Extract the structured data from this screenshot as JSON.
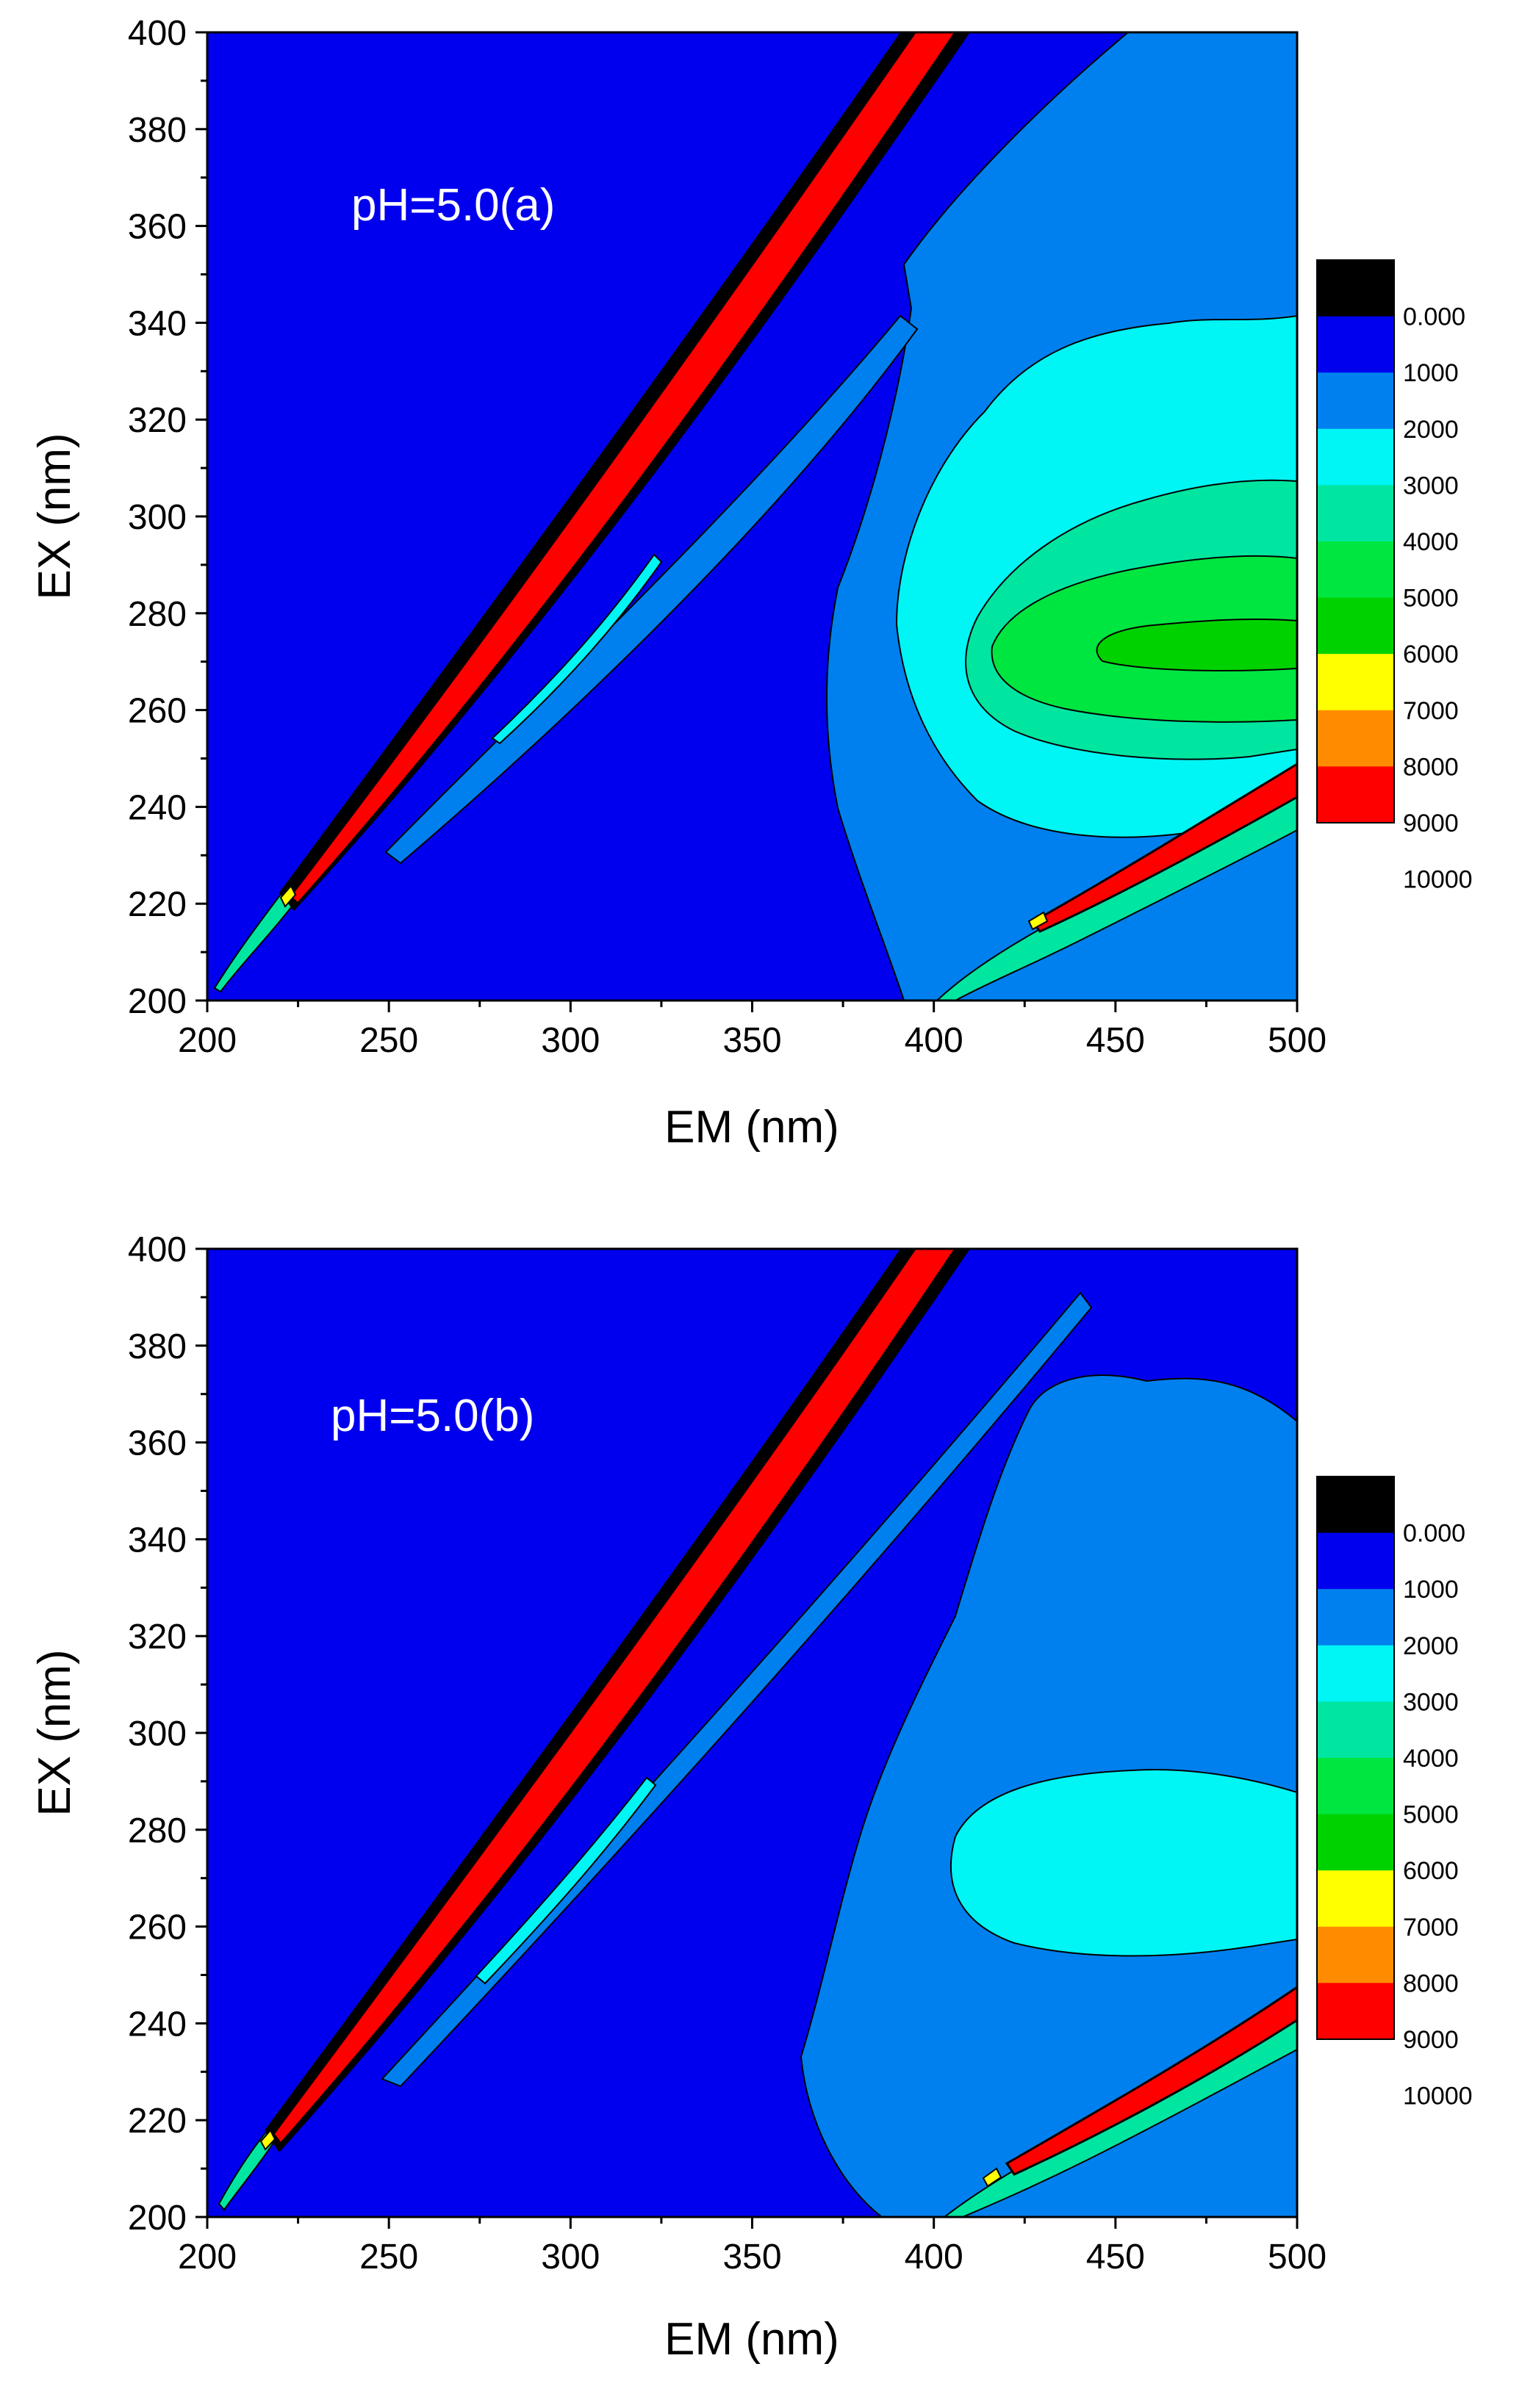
{
  "chart_data": [
    {
      "type": "contour",
      "title": "",
      "annotation": "pH=5.0(a)",
      "xlabel": "EM (nm)",
      "ylabel": "EX (nm)",
      "xlim": [
        200,
        500
      ],
      "ylim": [
        200,
        400
      ],
      "xticks": [
        "200",
        "250",
        "300",
        "350",
        "400",
        "450",
        "500"
      ],
      "yticks": [
        "200",
        "220",
        "240",
        "260",
        "280",
        "300",
        "320",
        "340",
        "360",
        "380",
        "400"
      ],
      "legend": {
        "position": "right",
        "levels": [
          "0.000",
          "1000",
          "2000",
          "3000",
          "4000",
          "5000",
          "6000",
          "7000",
          "8000",
          "9000",
          "10000"
        ],
        "colors": [
          "#000000",
          "#0000ee",
          "#0080ee",
          "#00f5f5",
          "#00e6a0",
          "#00e640",
          "#00d200",
          "#ffff00",
          "#ff8c00",
          "#ff0000"
        ]
      },
      "features": [
        {
          "name": "rayleigh-scatter-1st-order",
          "intensity": 10000,
          "path": [
            [
              205,
              200
            ],
            [
              225,
              220
            ],
            [
              390,
              400
            ]
          ]
        },
        {
          "name": "raman-band",
          "intensity": 2000,
          "path": [
            [
              250,
              230
            ],
            [
              400,
              340
            ]
          ]
        },
        {
          "name": "protein-like-peak",
          "em": 460,
          "ex": 270,
          "max_intensity": 6000
        },
        {
          "name": "rayleigh-scatter-2nd-order",
          "intensity": 10000,
          "path": [
            [
              400,
              200
            ],
            [
              500,
              250
            ]
          ]
        }
      ]
    },
    {
      "type": "contour",
      "title": "",
      "annotation": "pH=5.0(b)",
      "xlabel": "EM (nm)",
      "ylabel": "EX (nm)",
      "xlim": [
        200,
        500
      ],
      "ylim": [
        200,
        400
      ],
      "xticks": [
        "200",
        "250",
        "300",
        "350",
        "400",
        "450",
        "500"
      ],
      "yticks": [
        "200",
        "220",
        "240",
        "260",
        "280",
        "300",
        "320",
        "340",
        "360",
        "380",
        "400"
      ],
      "legend": {
        "position": "right",
        "levels": [
          "0.000",
          "1000",
          "2000",
          "3000",
          "4000",
          "5000",
          "6000",
          "7000",
          "8000",
          "9000",
          "10000"
        ],
        "colors": [
          "#000000",
          "#0000ee",
          "#0080ee",
          "#00f5f5",
          "#00e6a0",
          "#00e640",
          "#00d200",
          "#ffff00",
          "#ff8c00",
          "#ff0000"
        ]
      },
      "features": [
        {
          "name": "rayleigh-scatter-1st-order",
          "intensity": 10000,
          "path": [
            [
              205,
              200
            ],
            [
              218,
              214
            ],
            [
              390,
              400
            ]
          ]
        },
        {
          "name": "raman-band",
          "intensity": 2000,
          "path": [
            [
              250,
              228
            ],
            [
              440,
              390
            ]
          ]
        },
        {
          "name": "protein-like-peak",
          "em": 460,
          "ex": 270,
          "max_intensity": 3000
        },
        {
          "name": "rayleigh-scatter-2nd-order",
          "intensity": 10000,
          "path": [
            [
              395,
              200
            ],
            [
              500,
              255
            ]
          ]
        }
      ]
    }
  ]
}
